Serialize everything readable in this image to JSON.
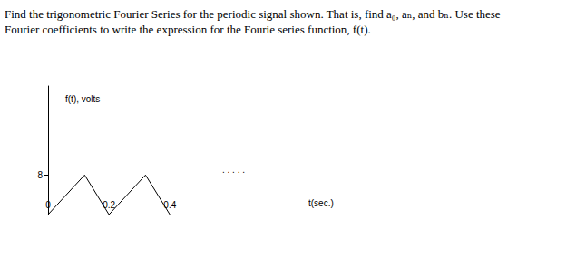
{
  "text": {
    "lines": [
      "Find the trigonometric Fourier Series for the periodic signal shown. That is, find a₀, aₙ, and bₙ.  Use these",
      "Fourier coefficients to write the expression for the Fourie series function, f(t)."
    ]
  },
  "chart_data": {
    "type": "line",
    "x_label": "t(sec.)",
    "y_label": "f(t), volts",
    "x": [
      0,
      0.12,
      0.2,
      0.32,
      0.4
    ],
    "values": [
      0,
      8,
      0,
      8,
      0
    ],
    "color": "#000000",
    "xlim": [
      0,
      0.84
    ],
    "ylim": [
      0,
      26
    ],
    "xticks": [
      0,
      0.2,
      0.4
    ],
    "yticks": [
      8
    ],
    "grid": false,
    "annotations": [
      ". . . . ."
    ]
  }
}
